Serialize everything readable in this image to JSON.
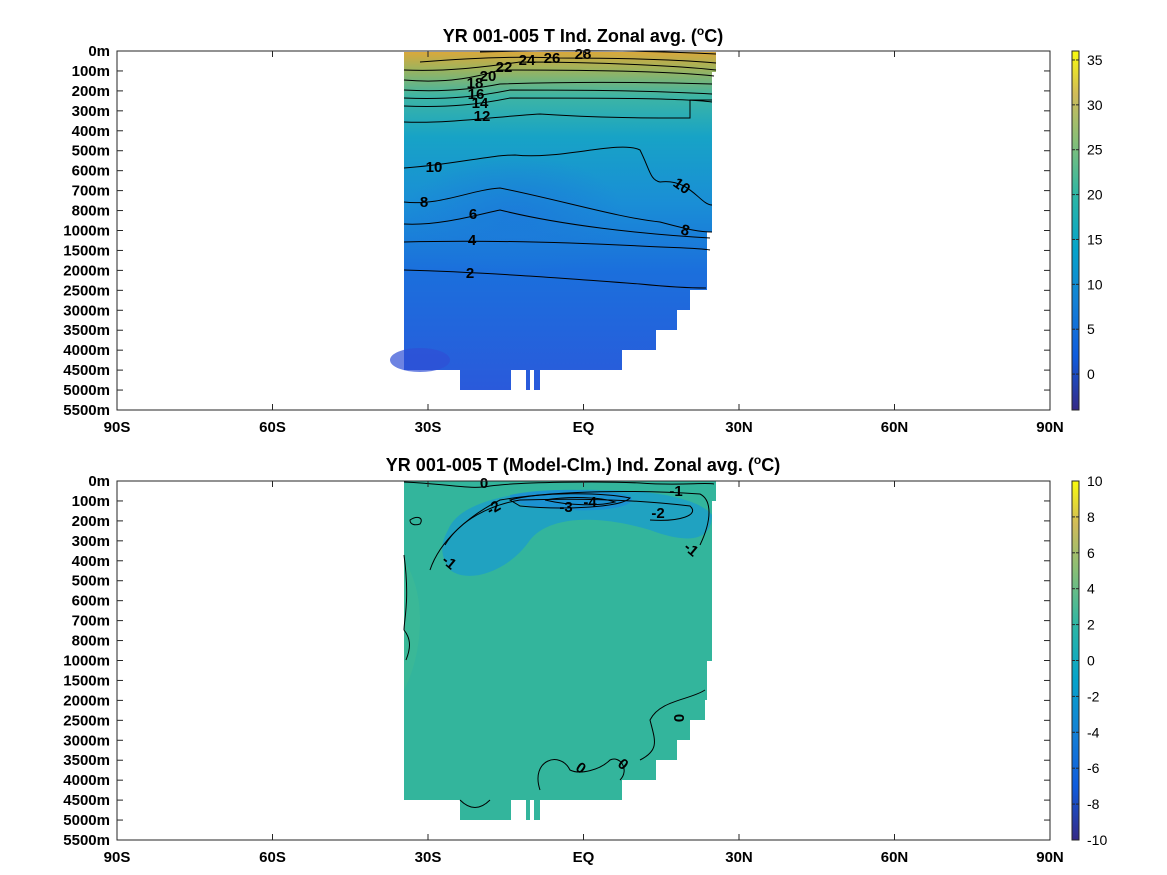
{
  "chart_data": [
    {
      "type": "heatmap",
      "title": "YR 001-005 T Ind. Zonal avg. (",
      "title_sup": "o",
      "title_unit": "C)",
      "x_ticks": [
        "90S",
        "60S",
        "30S",
        "EQ",
        "30N",
        "60N",
        "90N"
      ],
      "x_values": [
        -90,
        -60,
        -30,
        0,
        30,
        60,
        90
      ],
      "xlim": [
        -90,
        90
      ],
      "y_ticks": [
        "0m",
        "100m",
        "200m",
        "300m",
        "400m",
        "500m",
        "600m",
        "700m",
        "800m",
        "1000m",
        "1500m",
        "2000m",
        "2500m",
        "3000m",
        "3500m",
        "4000m",
        "4500m",
        "5000m",
        "5500m"
      ],
      "colorbar_ticks": [
        "35",
        "30",
        "25",
        "20",
        "15",
        "10",
        "5",
        "0"
      ],
      "colorbar_values": [
        35,
        30,
        25,
        20,
        15,
        10,
        5,
        0
      ],
      "colorbar_range": [
        -4,
        36
      ],
      "data_extent": {
        "lat_min": -35,
        "lat_max": 25
      },
      "contour_labels": [
        "28",
        "26",
        "24",
        "22",
        "20",
        "18",
        "16",
        "14",
        "12",
        "10",
        "10",
        "8",
        "8",
        "6",
        "4",
        "2"
      ],
      "colors": {
        "shallow": "#d9a83c",
        "upper": "#3eb5a4",
        "mid": "#1799d0",
        "deep": "#1868dc",
        "bottom": "#2f4ed6"
      }
    },
    {
      "type": "heatmap",
      "title": "YR 001-005 T (Model-Clm.) Ind. Zonal avg. (",
      "title_sup": "o",
      "title_unit": "C)",
      "x_ticks": [
        "90S",
        "60S",
        "30S",
        "EQ",
        "30N",
        "60N",
        "90N"
      ],
      "x_values": [
        -90,
        -60,
        -30,
        0,
        30,
        60,
        90
      ],
      "xlim": [
        -90,
        90
      ],
      "y_ticks": [
        "0m",
        "100m",
        "200m",
        "300m",
        "400m",
        "500m",
        "600m",
        "700m",
        "800m",
        "1000m",
        "1500m",
        "2000m",
        "2500m",
        "3000m",
        "3500m",
        "4000m",
        "4500m",
        "5000m",
        "5500m"
      ],
      "colorbar_ticks": [
        "10",
        "8",
        "6",
        "4",
        "2",
        "0",
        "-2",
        "-4",
        "-6",
        "-8",
        "-10"
      ],
      "colorbar_values": [
        10,
        8,
        6,
        4,
        2,
        0,
        -2,
        -4,
        -6,
        -8,
        -10
      ],
      "colorbar_range": [
        -10,
        10
      ],
      "data_extent": {
        "lat_min": -35,
        "lat_max": 25
      },
      "contour_labels": [
        "0",
        "-1",
        "-2",
        "-3",
        "-4",
        "-2",
        "-1",
        "-1",
        "0",
        "0",
        "0"
      ],
      "colors": {
        "background": "#33b59c",
        "cool": "#1fa5c0",
        "cold": "#1d8fd4"
      }
    }
  ]
}
